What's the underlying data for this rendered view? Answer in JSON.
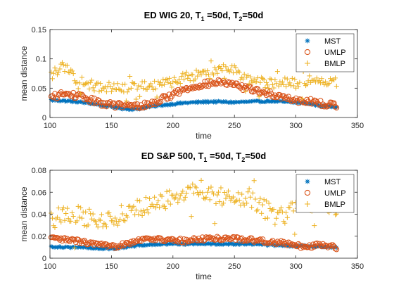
{
  "colors": {
    "MST": "#0072BD",
    "UMLP": "#D95319",
    "BMLP": "#EDB120"
  },
  "chart_data": [
    {
      "type": "scatter",
      "title_parts": [
        "ED WIG 20, T",
        "1",
        " =50d, T",
        "2",
        "=50d"
      ],
      "xlabel": "time",
      "ylabel": "mean distance",
      "xlim": [
        100,
        350
      ],
      "ylim": [
        0,
        0.15
      ],
      "xticks": [
        100,
        150,
        200,
        250,
        300,
        350
      ],
      "yticks": [
        0,
        0.05,
        0.1,
        0.15
      ],
      "ytick_labels": [
        "0",
        "0.05",
        "0.1",
        "0.15"
      ],
      "legend": {
        "placement": "top-right",
        "entries": [
          "MST",
          "UMLP",
          "BMLP"
        ]
      },
      "x_range": [
        101,
        333
      ],
      "series": [
        {
          "name": "MST",
          "marker": "asterisk",
          "curve": [
            [
              100,
              0.03
            ],
            [
              115,
              0.028
            ],
            [
              130,
              0.025
            ],
            [
              145,
              0.02
            ],
            [
              160,
              0.015
            ],
            [
              170,
              0.014
            ],
            [
              180,
              0.018
            ],
            [
              195,
              0.022
            ],
            [
              210,
              0.025
            ],
            [
              230,
              0.027
            ],
            [
              250,
              0.026
            ],
            [
              265,
              0.027
            ],
            [
              280,
              0.028
            ],
            [
              295,
              0.026
            ],
            [
              310,
              0.024
            ],
            [
              320,
              0.02
            ],
            [
              333,
              0.018
            ]
          ],
          "noise": 0.0015
        },
        {
          "name": "UMLP",
          "marker": "circle",
          "curve": [
            [
              100,
              0.033
            ],
            [
              110,
              0.04
            ],
            [
              120,
              0.038
            ],
            [
              130,
              0.032
            ],
            [
              140,
              0.025
            ],
            [
              150,
              0.022
            ],
            [
              160,
              0.02
            ],
            [
              170,
              0.019
            ],
            [
              180,
              0.022
            ],
            [
              190,
              0.03
            ],
            [
              200,
              0.04
            ],
            [
              210,
              0.048
            ],
            [
              220,
              0.055
            ],
            [
              230,
              0.058
            ],
            [
              240,
              0.06
            ],
            [
              250,
              0.055
            ],
            [
              260,
              0.05
            ],
            [
              270,
              0.045
            ],
            [
              280,
              0.04
            ],
            [
              290,
              0.035
            ],
            [
              300,
              0.03
            ],
            [
              310,
              0.028
            ],
            [
              320,
              0.024
            ],
            [
              333,
              0.02
            ]
          ],
          "noise": 0.005
        },
        {
          "name": "BMLP",
          "marker": "plus",
          "curve": [
            [
              100,
              0.072
            ],
            [
              110,
              0.085
            ],
            [
              115,
              0.08
            ],
            [
              120,
              0.068
            ],
            [
              130,
              0.058
            ],
            [
              140,
              0.05
            ],
            [
              150,
              0.052
            ],
            [
              160,
              0.05
            ],
            [
              170,
              0.052
            ],
            [
              180,
              0.055
            ],
            [
              190,
              0.058
            ],
            [
              200,
              0.06
            ],
            [
              210,
              0.068
            ],
            [
              220,
              0.072
            ],
            [
              230,
              0.075
            ],
            [
              240,
              0.085
            ],
            [
              250,
              0.08
            ],
            [
              260,
              0.068
            ],
            [
              270,
              0.06
            ],
            [
              280,
              0.058
            ],
            [
              290,
              0.06
            ],
            [
              300,
              0.058
            ],
            [
              310,
              0.062
            ],
            [
              320,
              0.065
            ],
            [
              333,
              0.058
            ]
          ],
          "noise": 0.009
        }
      ]
    },
    {
      "type": "scatter",
      "title_parts": [
        "ED S&P 500, T",
        "1",
        " =50d, T",
        "2",
        "=50d"
      ],
      "xlabel": "time",
      "ylabel": "mean distance",
      "xlim": [
        100,
        350
      ],
      "ylim": [
        0,
        0.08
      ],
      "xticks": [
        100,
        150,
        200,
        250,
        300,
        350
      ],
      "yticks": [
        0,
        0.02,
        0.04,
        0.06,
        0.08
      ],
      "ytick_labels": [
        "0",
        "0.02",
        "0.04",
        "0.06",
        "0.08"
      ],
      "legend": {
        "placement": "top-right",
        "entries": [
          "MST",
          "UMLP",
          "BMLP"
        ]
      },
      "x_range": [
        101,
        333
      ],
      "series": [
        {
          "name": "MST",
          "marker": "asterisk",
          "curve": [
            [
              100,
              0.0105
            ],
            [
              120,
              0.01
            ],
            [
              140,
              0.009
            ],
            [
              150,
              0.0085
            ],
            [
              160,
              0.01
            ],
            [
              175,
              0.012
            ],
            [
              200,
              0.013
            ],
            [
              230,
              0.013
            ],
            [
              260,
              0.013
            ],
            [
              280,
              0.012
            ],
            [
              295,
              0.011
            ],
            [
              310,
              0.011
            ],
            [
              333,
              0.01
            ]
          ],
          "noise": 0.0008
        },
        {
          "name": "UMLP",
          "marker": "circle",
          "curve": [
            [
              100,
              0.018
            ],
            [
              110,
              0.017
            ],
            [
              120,
              0.016
            ],
            [
              130,
              0.014
            ],
            [
              140,
              0.012
            ],
            [
              150,
              0.01
            ],
            [
              160,
              0.013
            ],
            [
              170,
              0.016
            ],
            [
              180,
              0.018
            ],
            [
              190,
              0.017
            ],
            [
              200,
              0.016
            ],
            [
              210,
              0.016
            ],
            [
              220,
              0.017
            ],
            [
              230,
              0.018
            ],
            [
              240,
              0.018
            ],
            [
              250,
              0.018
            ],
            [
              260,
              0.017
            ],
            [
              270,
              0.016
            ],
            [
              280,
              0.015
            ],
            [
              290,
              0.014
            ],
            [
              300,
              0.011
            ],
            [
              310,
              0.011
            ],
            [
              320,
              0.012
            ],
            [
              333,
              0.01
            ]
          ],
          "noise": 0.002
        },
        {
          "name": "BMLP",
          "marker": "plus",
          "curve": [
            [
              100,
              0.036
            ],
            [
              110,
              0.038
            ],
            [
              120,
              0.04
            ],
            [
              130,
              0.037
            ],
            [
              140,
              0.033
            ],
            [
              150,
              0.036
            ],
            [
              160,
              0.04
            ],
            [
              170,
              0.045
            ],
            [
              180,
              0.048
            ],
            [
              190,
              0.05
            ],
            [
              200,
              0.055
            ],
            [
              210,
              0.06
            ],
            [
              220,
              0.065
            ],
            [
              230,
              0.06
            ],
            [
              240,
              0.055
            ],
            [
              250,
              0.058
            ],
            [
              260,
              0.056
            ],
            [
              270,
              0.05
            ],
            [
              280,
              0.04
            ],
            [
              290,
              0.038
            ],
            [
              300,
              0.045
            ],
            [
              310,
              0.05
            ],
            [
              320,
              0.052
            ],
            [
              333,
              0.048
            ]
          ],
          "noise": 0.009
        }
      ]
    }
  ]
}
